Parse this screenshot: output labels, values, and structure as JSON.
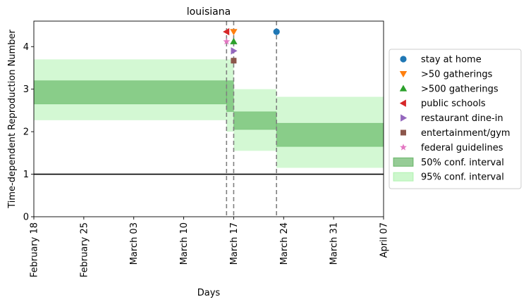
{
  "chart_data": {
    "type": "line",
    "title": "louisiana",
    "xlabel": "Days",
    "ylabel": "Time-dependent Reproduction Number",
    "x_axis": {
      "type": "date",
      "min": "2020-02-18",
      "max": "2020-04-07",
      "ticks": [
        {
          "date": "2020-02-18",
          "label": "February 18"
        },
        {
          "date": "2020-02-25",
          "label": "February 25"
        },
        {
          "date": "2020-03-03",
          "label": "March 03"
        },
        {
          "date": "2020-03-10",
          "label": "March 10"
        },
        {
          "date": "2020-03-17",
          "label": "March 17"
        },
        {
          "date": "2020-03-24",
          "label": "March 24"
        },
        {
          "date": "2020-03-31",
          "label": "March 31"
        },
        {
          "date": "2020-04-07",
          "label": "April 07"
        }
      ]
    },
    "y_axis": {
      "min": 0,
      "max": 4.6,
      "ticks": [
        0,
        1,
        2,
        3,
        4
      ]
    },
    "reference_line": {
      "y": 1,
      "color": "#000000"
    },
    "vertical_lines": [
      "2020-03-16",
      "2020-03-17",
      "2020-03-23"
    ],
    "ci_periods": [
      {
        "start": "2020-02-18",
        "end": "2020-03-16",
        "ci50": [
          2.65,
          3.2
        ],
        "ci95": [
          2.27,
          3.7
        ]
      },
      {
        "start": "2020-03-16",
        "end": "2020-03-17",
        "ci50": [
          2.47,
          3.2
        ],
        "ci95": [
          2.0,
          3.7
        ]
      },
      {
        "start": "2020-03-17",
        "end": "2020-03-23",
        "ci50": [
          2.05,
          2.47
        ],
        "ci95": [
          1.55,
          3.0
        ]
      },
      {
        "start": "2020-03-23",
        "end": "2020-04-07",
        "ci50": [
          1.65,
          2.2
        ],
        "ci95": [
          1.15,
          2.82
        ]
      }
    ],
    "interventions": [
      {
        "name": "stay at home",
        "date": "2020-03-23",
        "y": 4.35,
        "marker": "circle",
        "color": "#1f77b4"
      },
      {
        "name": ">50 gatherings",
        "date": "2020-03-17",
        "y": 4.35,
        "marker": "triangle-down",
        "color": "#ff7f0e"
      },
      {
        "name": ">500 gatherings",
        "date": "2020-03-17",
        "y": 4.12,
        "marker": "triangle-up",
        "color": "#2ca02c"
      },
      {
        "name": "public schools",
        "date": "2020-03-16",
        "y": 4.35,
        "marker": "triangle-left",
        "color": "#d62728"
      },
      {
        "name": "restaurant dine-in",
        "date": "2020-03-17",
        "y": 3.9,
        "marker": "triangle-right",
        "color": "#9467bd"
      },
      {
        "name": "entertainment/gym",
        "date": "2020-03-17",
        "y": 3.67,
        "marker": "square",
        "color": "#8c564b"
      },
      {
        "name": "federal guidelines",
        "date": "2020-03-16",
        "y": 4.12,
        "marker": "star",
        "color": "#e377c2"
      }
    ],
    "legend": {
      "placement": "right-outside",
      "ci50_label": "50% conf. interval",
      "ci95_label": "95% conf. interval"
    },
    "colors": {
      "ci50": "#2e9a2e",
      "ci95": "#90ee90",
      "vline": "#808080"
    }
  }
}
